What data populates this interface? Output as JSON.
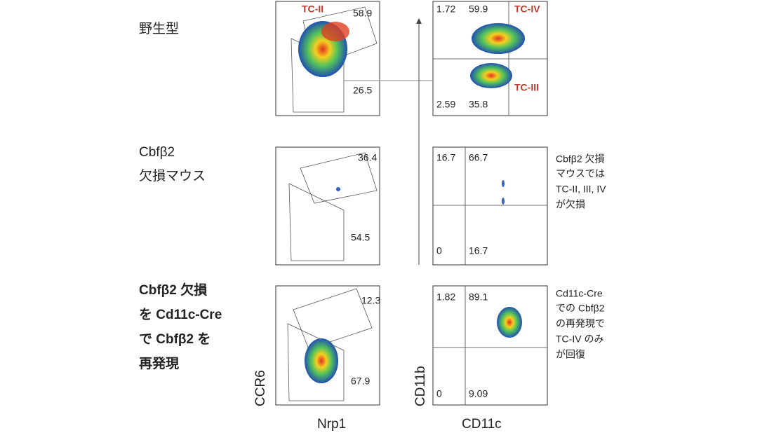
{
  "rows": [
    {
      "label": [
        "野生型"
      ],
      "left": {
        "gates": [
          "58.9",
          "26.5"
        ],
        "tags": [
          "TC-II"
        ]
      },
      "right": {
        "quadrants": [
          "1.72",
          "59.9",
          "2.59",
          "35.8"
        ],
        "tags": [
          "TC-IV",
          "TC-III"
        ]
      }
    },
    {
      "label": [
        "Cbfβ2",
        "欠損マウス"
      ],
      "left": {
        "gates": [
          "36.4",
          "54.5"
        ]
      },
      "right": {
        "quadrants": [
          "16.7",
          "66.7",
          "0",
          "16.7"
        ]
      },
      "note": [
        "Cbfβ2 欠損",
        "マウスでは",
        "TC-II, III, IV",
        "が欠損"
      ]
    },
    {
      "label": [
        "Cbfβ2 欠損",
        "を Cd11c-Cre",
        "で Cbfβ2 を",
        "再発現"
      ],
      "left": {
        "gates": [
          "12.3",
          "67.9"
        ]
      },
      "right": {
        "quadrants": [
          "1.82",
          "89.1",
          "0",
          "9.09"
        ]
      },
      "note": [
        "Cd11c-Cre",
        "での Cbfβ2",
        "の再発現で",
        "TC-IV のみ",
        "が回復"
      ]
    }
  ],
  "axes": {
    "left_x": "Nrp1",
    "left_y": "CCR6",
    "right_x": "CD11c",
    "right_y": "CD11b"
  }
}
